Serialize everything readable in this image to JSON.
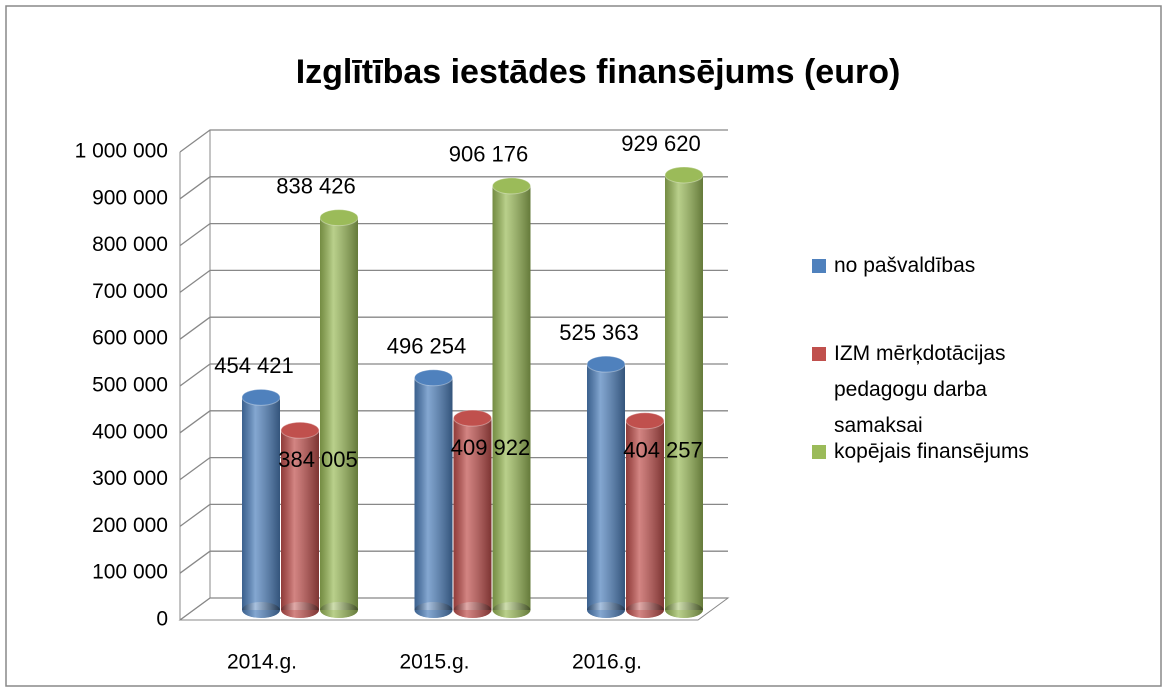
{
  "chart_data": {
    "type": "bar3d",
    "title": "Izglītības iestādes finansējums (euro)",
    "categories": [
      "2014.g.",
      "2015.g.",
      "2016.g."
    ],
    "series": [
      {
        "name": "no pašvaldības",
        "color": "#4f81bd",
        "values": [
          454421,
          496254,
          525363
        ],
        "value_labels": [
          "454 421",
          "496 254",
          "525 363"
        ]
      },
      {
        "name": "IZM mērķdotācijas pedagogu darba samaksai",
        "color": "#c0504d",
        "values": [
          384005,
          409922,
          404257
        ],
        "value_labels": [
          "384 005",
          "409 922",
          "404 257"
        ]
      },
      {
        "name": "kopējais finansējums",
        "color": "#9bbb59",
        "values": [
          838426,
          906176,
          929620
        ],
        "value_labels": [
          "838 426",
          "906 176",
          "929 620"
        ]
      }
    ],
    "ylim": [
      0,
      1000000
    ],
    "yticks": [
      0,
      {
        "value": 100000,
        "label": "100 000"
      },
      {
        "value": 200000,
        "label": "200 000"
      },
      {
        "value": 300000,
        "label": "300 000"
      },
      {
        "value": 400000,
        "label": "400 000"
      },
      {
        "value": 500000,
        "label": "500 000"
      },
      {
        "value": 600000,
        "label": "600 000"
      },
      {
        "value": 700000,
        "label": "700 000"
      },
      {
        "value": 800000,
        "label": "800 000"
      },
      {
        "value": 900000,
        "label": "900 000"
      },
      {
        "value": 1000000,
        "label": "1 000 000"
      }
    ],
    "grid": true,
    "legend": "right"
  }
}
